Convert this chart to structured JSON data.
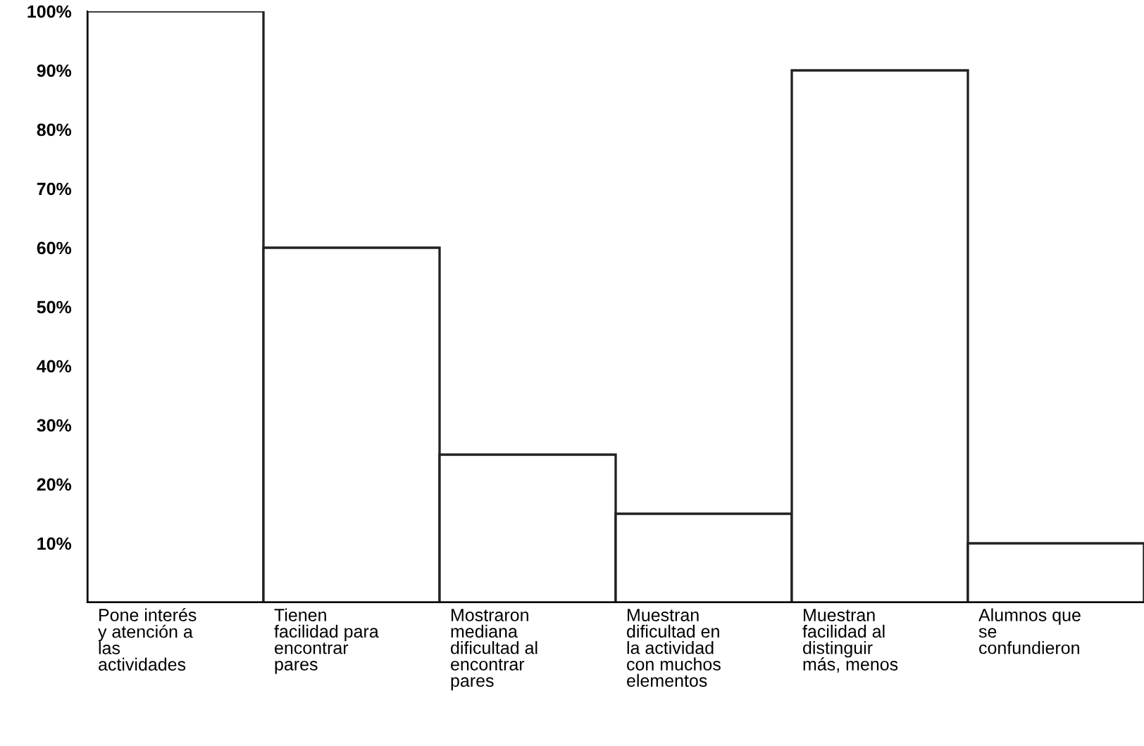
{
  "chart_data": {
    "type": "bar",
    "categories": [
      "Pone interés\ny atención a\nlas\nactividades",
      "Tienen\nfacilidad para\nencontrar\npares",
      "Mostraron\nmediana\ndificultad al\nencontrar\npares",
      "Muestran\ndificultad en\nla actividad\ncon muchos\nelementos",
      "Muestran\nfacilidad al\ndistinguir\nmás, menos",
      "Alumnos que\nse\nconfundieron"
    ],
    "values": [
      100,
      60,
      25,
      15,
      90,
      10
    ],
    "color": "#ffffff",
    "ylim": [
      0,
      100
    ],
    "yticks": [
      {
        "value": 10,
        "label": "10%"
      },
      {
        "value": 20,
        "label": "20%"
      },
      {
        "value": 30,
        "label": "30%"
      },
      {
        "value": 40,
        "label": "40%"
      },
      {
        "value": 50,
        "label": "50%"
      },
      {
        "value": 60,
        "label": "60%"
      },
      {
        "value": 70,
        "label": "70%"
      },
      {
        "value": 80,
        "label": "80%"
      },
      {
        "value": 90,
        "label": "90%"
      },
      {
        "value": 100,
        "label": "100%"
      }
    ],
    "grid": false
  }
}
